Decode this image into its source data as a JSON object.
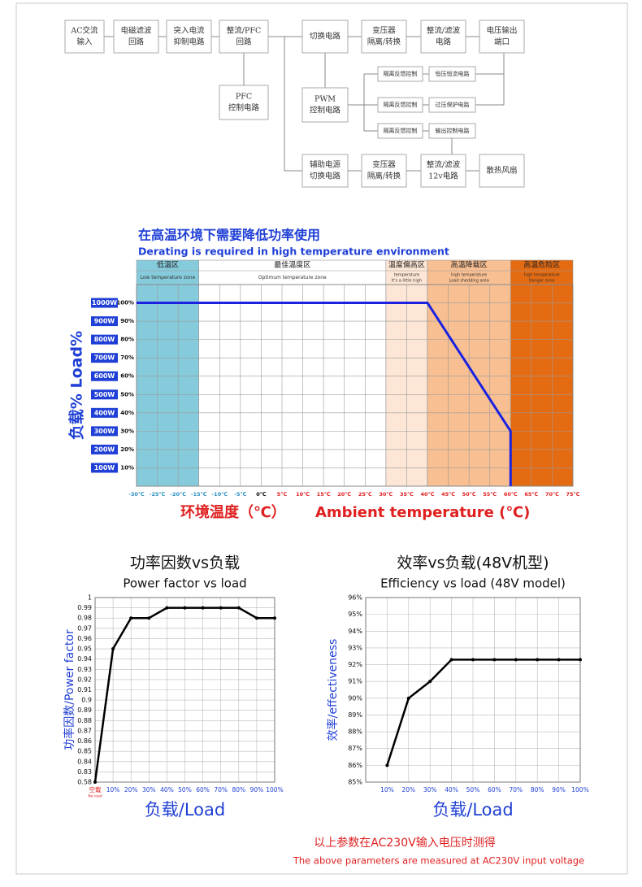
{
  "diagram": {
    "nodes": [
      {
        "label": [
          "AC交流",
          "输入"
        ]
      },
      {
        "label": [
          "电磁滤波",
          "回路"
        ]
      },
      {
        "label": [
          "突入电流",
          "抑制电路"
        ]
      },
      {
        "label": [
          "整流/PFC",
          "回路"
        ]
      },
      {
        "label": [
          "切换电路"
        ]
      },
      {
        "label": [
          "变压器",
          "隔离/转换"
        ]
      },
      {
        "label": [
          "整流/滤波",
          "电路"
        ]
      },
      {
        "label": [
          "电压输出",
          "端口"
        ]
      },
      {
        "label": [
          "PFC",
          "控制电路"
        ]
      },
      {
        "label": [
          "PWM",
          "控制电路"
        ]
      },
      {
        "label": [
          "隔离反馈控制"
        ]
      },
      {
        "label": [
          "恒压恒流电路"
        ]
      },
      {
        "label": [
          "隔离反馈控制"
        ]
      },
      {
        "label": [
          "过压保护电路"
        ]
      },
      {
        "label": [
          "隔离反馈控制"
        ]
      },
      {
        "label": [
          "输出控制电路"
        ]
      },
      {
        "label": [
          "辅助电源",
          "切换电路"
        ]
      },
      {
        "label": [
          "变压器",
          "隔离/转换"
        ]
      },
      {
        "label": [
          "整流/滤波",
          "12v电路"
        ]
      },
      {
        "label": [
          "散热风扇"
        ]
      }
    ]
  },
  "chart_data": [
    {
      "type": "line",
      "title": "在高温环境下需要降低功率使用",
      "subtitle": "Derating is required in high temperature environment",
      "ylabel": "负载%  Load%",
      "xlabel": [
        "环境温度（℃）",
        "Ambient temperature (℃)"
      ],
      "zones": [
        {
          "name": "低温区",
          "note": [
            "Low temperature zone"
          ],
          "range": [
            -30,
            -15
          ],
          "color": "#86cbdb"
        },
        {
          "name": "最佳温度区",
          "note": [
            "Optimum temperature zone"
          ],
          "range": [
            -15,
            30
          ],
          "color": "#ffffff"
        },
        {
          "name": "温度偏高区",
          "note": [
            "temperature",
            "It's a little high"
          ],
          "range": [
            30,
            40
          ],
          "color": "#fde6d5"
        },
        {
          "name": "高温降载区",
          "note": [
            "high temperature",
            "Load shedding area"
          ],
          "range": [
            40,
            60
          ],
          "color": "#f8bf92"
        },
        {
          "name": "高温危险区",
          "note": [
            "high temperature",
            "Danger zone"
          ],
          "range": [
            60,
            75
          ],
          "color": "#e56b12"
        }
      ],
      "xlim": [
        -30,
        75
      ],
      "ylim": [
        0,
        110
      ],
      "xticks": [
        {
          "value": -30,
          "label": "-30℃"
        },
        {
          "value": -25,
          "label": "-25℃"
        },
        {
          "value": -20,
          "label": "-20℃"
        },
        {
          "value": -15,
          "label": "-15℃"
        },
        {
          "value": -10,
          "label": "-10℃"
        },
        {
          "value": -5,
          "label": "-5℃"
        },
        {
          "value": 0,
          "label": "0℃"
        },
        {
          "value": 5,
          "label": "5℃"
        },
        {
          "value": 10,
          "label": "10℃"
        },
        {
          "value": 15,
          "label": "15℃"
        },
        {
          "value": 20,
          "label": "20℃"
        },
        {
          "value": 25,
          "label": "25℃"
        },
        {
          "value": 30,
          "label": "30℃"
        },
        {
          "value": 35,
          "label": "35℃"
        },
        {
          "value": 40,
          "label": "40℃"
        },
        {
          "value": 45,
          "label": "45℃"
        },
        {
          "value": 50,
          "label": "50℃"
        },
        {
          "value": 55,
          "label": "55℃"
        },
        {
          "value": 60,
          "label": "60℃"
        },
        {
          "value": 65,
          "label": "65℃"
        },
        {
          "value": 70,
          "label": "70℃"
        },
        {
          "value": 75,
          "label": "75℃"
        }
      ],
      "yticks": [
        {
          "value": 10,
          "label": "10%"
        },
        {
          "value": 20,
          "label": "20%"
        },
        {
          "value": 30,
          "label": "30%"
        },
        {
          "value": 40,
          "label": "40%"
        },
        {
          "value": 50,
          "label": "50%"
        },
        {
          "value": 60,
          "label": "60%"
        },
        {
          "value": 70,
          "label": "70%"
        },
        {
          "value": 80,
          "label": "80%"
        },
        {
          "value": 90,
          "label": "90%"
        },
        {
          "value": 100,
          "label": "100%"
        }
      ],
      "y_power_labels": [
        "100W",
        "200W",
        "300W",
        "400W",
        "500W",
        "600W",
        "700W",
        "800W",
        "900W",
        "1000W"
      ],
      "grid": true,
      "series": [
        {
          "color": "#1a22e0",
          "x": [
            -30,
            40,
            60,
            60
          ],
          "values": [
            100,
            100,
            30,
            0
          ]
        }
      ]
    },
    {
      "type": "line",
      "title": "功率因数vs负载",
      "subtitle": "Power factor vs load",
      "ylabel": "功率因数/Power factor",
      "xlabel": [
        "负载/Load"
      ],
      "xlim": [
        0,
        100
      ],
      "ylim": [
        0.58,
        1
      ],
      "y_scale": "tick-spaced",
      "xticks": [
        {
          "value": 0,
          "label": "空载"
        },
        {
          "value": 10,
          "label": "10%"
        },
        {
          "value": 20,
          "label": "20%"
        },
        {
          "value": 30,
          "label": "30%"
        },
        {
          "value": 40,
          "label": "40%"
        },
        {
          "value": 50,
          "label": "50%"
        },
        {
          "value": 60,
          "label": "60%"
        },
        {
          "value": 70,
          "label": "70%"
        },
        {
          "value": 80,
          "label": "80%"
        },
        {
          "value": 90,
          "label": "90%"
        },
        {
          "value": 100,
          "label": "100%"
        }
      ],
      "no_load_label": "No load",
      "yticks": [
        0.58,
        0.83,
        0.84,
        0.85,
        0.86,
        0.87,
        0.88,
        0.89,
        0.9,
        0.91,
        0.92,
        0.93,
        0.94,
        0.95,
        0.96,
        0.97,
        0.98,
        0.99,
        1
      ],
      "grid": true,
      "series": [
        {
          "color": "#000000",
          "x": [
            0,
            10,
            20,
            30,
            40,
            50,
            60,
            70,
            80,
            90,
            100
          ],
          "values": [
            0.58,
            0.95,
            0.98,
            0.98,
            0.99,
            0.99,
            0.99,
            0.99,
            0.99,
            0.98,
            0.98
          ]
        }
      ]
    },
    {
      "type": "line",
      "title": "效率vs负载(48V机型)",
      "subtitle": "Efficiency vs load (48V model)",
      "ylabel": "效率/effectiveness",
      "xlabel": [
        "负载/Load"
      ],
      "xlim": [
        0,
        100
      ],
      "ylim": [
        85,
        96
      ],
      "xticks": [
        {
          "value": 10,
          "label": "10%"
        },
        {
          "value": 20,
          "label": "20%"
        },
        {
          "value": 30,
          "label": "30%"
        },
        {
          "value": 40,
          "label": "40%"
        },
        {
          "value": 50,
          "label": "50%"
        },
        {
          "value": 60,
          "label": "60%"
        },
        {
          "value": 70,
          "label": "70%"
        },
        {
          "value": 80,
          "label": "80%"
        },
        {
          "value": 90,
          "label": "90%"
        },
        {
          "value": 100,
          "label": "100%"
        }
      ],
      "yticks": [
        {
          "value": 85,
          "label": "85%"
        },
        {
          "value": 86,
          "label": "86%"
        },
        {
          "value": 87,
          "label": "87%"
        },
        {
          "value": 88,
          "label": "88%"
        },
        {
          "value": 89,
          "label": "89%"
        },
        {
          "value": 90,
          "label": "90%"
        },
        {
          "value": 91,
          "label": "91%"
        },
        {
          "value": 92,
          "label": "92%"
        },
        {
          "value": 93,
          "label": "93%"
        },
        {
          "value": 94,
          "label": "94%"
        },
        {
          "value": 95,
          "label": "95%"
        },
        {
          "value": 96,
          "label": "96%"
        }
      ],
      "grid": true,
      "series": [
        {
          "color": "#000000",
          "x": [
            10,
            20,
            30,
            40,
            50,
            60,
            70,
            80,
            90,
            100
          ],
          "values": [
            86,
            90,
            91,
            92.3,
            92.3,
            92.3,
            92.3,
            92.3,
            92.3,
            92.3
          ]
        }
      ]
    }
  ],
  "footer": {
    "zh": "以上参数在AC230V输入电压时测得",
    "en": "The above parameters are measured at AC230V input voltage"
  }
}
